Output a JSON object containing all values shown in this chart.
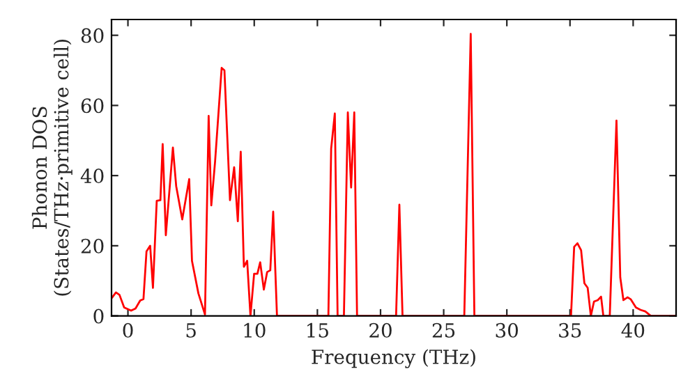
{
  "chart_data": {
    "type": "line",
    "xlabel": "Frequency (THz)",
    "ylabel": "Phonon DOS\n(States/THz·primitive cell)",
    "xlim": [
      -1.3,
      43.4
    ],
    "ylim": [
      0,
      84.5
    ],
    "xticks": [
      0,
      5,
      10,
      15,
      20,
      25,
      30,
      35,
      40
    ],
    "yticks": [
      0,
      20,
      40,
      60,
      80
    ],
    "grid": false,
    "marker": "none",
    "line_style": "solid",
    "series": [
      {
        "color": "#ff0000",
        "x": [
          -1.3,
          -0.95,
          -0.67,
          -0.3,
          0.25,
          0.6,
          0.97,
          1.23,
          1.47,
          1.76,
          1.98,
          2.28,
          2.57,
          2.75,
          3.0,
          3.56,
          3.82,
          4.3,
          4.85,
          5.07,
          5.58,
          6.1,
          6.39,
          6.6,
          6.9,
          7.42,
          7.64,
          8.08,
          8.41,
          8.7,
          8.93,
          9.18,
          9.44,
          9.7,
          9.99,
          10.25,
          10.47,
          10.76,
          11.02,
          11.27,
          11.5,
          11.8,
          15.87,
          16.09,
          16.38,
          16.6,
          17.1,
          17.41,
          17.67,
          17.92,
          18.14,
          21.23,
          21.49,
          21.74,
          26.63,
          27.14,
          27.43,
          35.08,
          35.33,
          35.59,
          35.88,
          36.14,
          36.4,
          36.65,
          36.9,
          37.2,
          37.46,
          37.64,
          38.15,
          38.68,
          38.98,
          39.23,
          39.56,
          39.82,
          40.22,
          40.59,
          40.96,
          41.4,
          43.4
        ],
        "values": [
          5,
          6.7,
          6,
          2.4,
          1.5,
          2.1,
          4.4,
          4.8,
          18.4,
          20,
          8,
          32.8,
          33,
          49,
          23,
          48,
          37,
          27.5,
          39,
          15.7,
          6.4,
          0.4,
          57,
          31.5,
          44,
          70.7,
          70,
          33,
          42.4,
          27,
          46.8,
          14,
          15.7,
          0,
          12,
          12,
          15.3,
          7.5,
          12.5,
          13,
          29.7,
          0,
          0,
          47.7,
          57.7,
          0,
          0,
          58,
          36.6,
          58,
          0,
          0,
          31.7,
          0,
          0,
          80.4,
          0,
          0,
          19.7,
          20.7,
          18.7,
          9.3,
          8,
          0,
          4.1,
          4.5,
          5.5,
          0,
          0,
          55.7,
          11,
          4.5,
          5.3,
          4.7,
          2.4,
          1.7,
          1.3,
          0,
          0
        ]
      }
    ]
  }
}
